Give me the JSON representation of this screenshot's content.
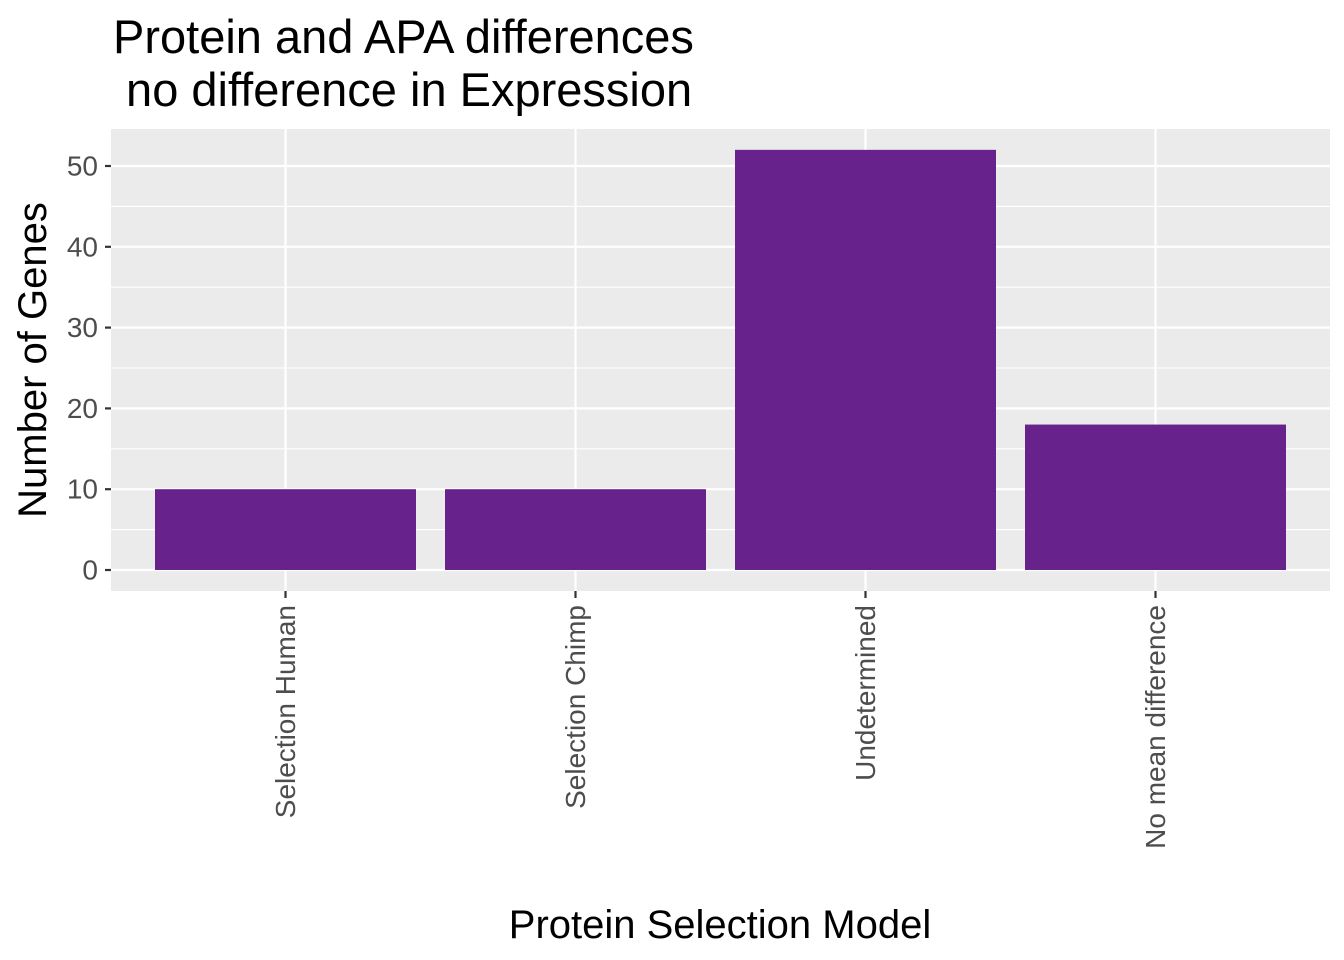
{
  "chart_data": {
    "type": "bar",
    "title_lines": [
      "Protein and APA differences",
      " no difference in Expression"
    ],
    "xlabel": "Protein Selection Model",
    "ylabel": "Number of Genes",
    "categories": [
      "Selection Human",
      "Selection Chimp",
      "Undetermined",
      "No mean difference"
    ],
    "values": [
      10,
      10,
      52,
      18
    ],
    "ylim": [
      0,
      54.6
    ],
    "yticks": [
      0,
      10,
      20,
      30,
      40,
      50
    ],
    "grid": true,
    "bar_color": "#68228B",
    "panel_background": "#EBEBEB",
    "grid_color": "#FFFFFF",
    "axis_text_color": "#4D4D4D",
    "x_tick_label_rotation": "vertical"
  }
}
